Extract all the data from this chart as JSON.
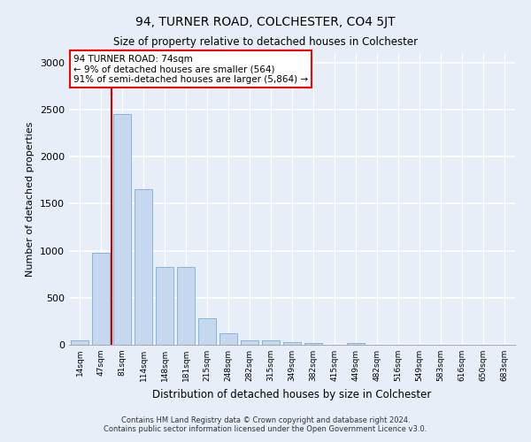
{
  "title": "94, TURNER ROAD, COLCHESTER, CO4 5JT",
  "subtitle": "Size of property relative to detached houses in Colchester",
  "xlabel": "Distribution of detached houses by size in Colchester",
  "ylabel": "Number of detached properties",
  "annotation_line1": "94 TURNER ROAD: 74sqm",
  "annotation_line2": "← 9% of detached houses are smaller (564)",
  "annotation_line3": "91% of semi-detached houses are larger (5,864) →",
  "bar_color": "#c5d8ef",
  "bar_edge_color": "#7aadd4",
  "vline_color": "#cc0000",
  "categories": [
    "14sqm",
    "47sqm",
    "81sqm",
    "114sqm",
    "148sqm",
    "181sqm",
    "215sqm",
    "248sqm",
    "282sqm",
    "315sqm",
    "349sqm",
    "382sqm",
    "415sqm",
    "449sqm",
    "482sqm",
    "516sqm",
    "549sqm",
    "583sqm",
    "616sqm",
    "650sqm",
    "683sqm"
  ],
  "values": [
    50,
    980,
    2450,
    1650,
    830,
    830,
    280,
    120,
    50,
    50,
    30,
    20,
    0,
    20,
    0,
    0,
    0,
    0,
    0,
    0,
    0
  ],
  "ylim": [
    0,
    3100
  ],
  "yticks": [
    0,
    500,
    1000,
    1500,
    2000,
    2500,
    3000
  ],
  "footer_line1": "Contains HM Land Registry data © Crown copyright and database right 2024.",
  "footer_line2": "Contains public sector information licensed under the Open Government Licence v3.0.",
  "background_color": "#e8eef7",
  "plot_bg_color": "#e8eef7"
}
